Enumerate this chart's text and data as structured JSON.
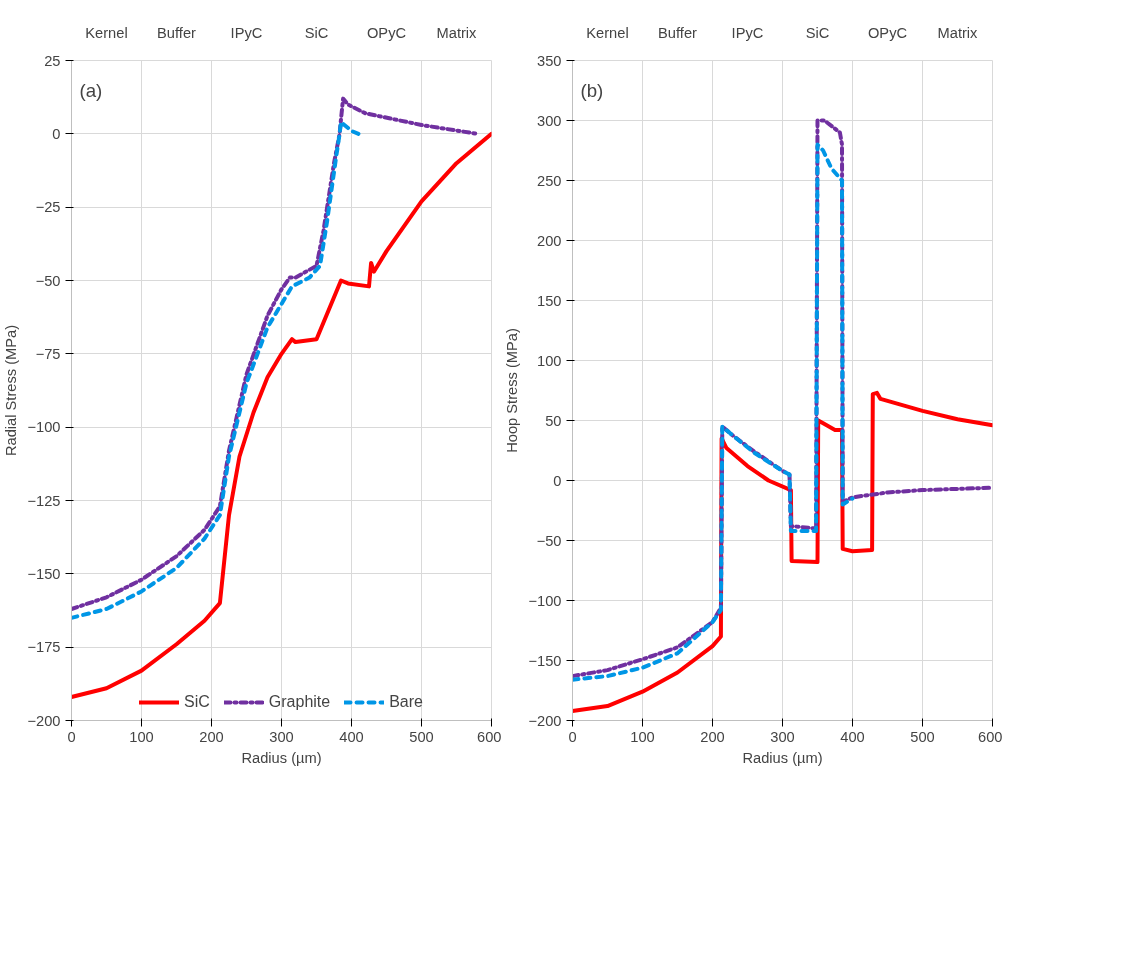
{
  "chart_data": [
    {
      "type": "other",
      "annotations": [
        "Kernel",
        "Buffer",
        "IPyC",
        "SiC",
        "OPyC",
        "Matrix"
      ]
    },
    {
      "type": "line",
      "xlabel": "Radius (µm)",
      "ylabel": "Radial Stress (MPa)",
      "annotations": [
        "(a)"
      ],
      "xlim": [
        0,
        600
      ],
      "xticks": [
        0,
        100,
        200,
        300,
        400,
        500,
        600
      ],
      "ylim": [
        -200,
        25
      ],
      "yticks": [
        -200,
        -175,
        -150,
        -125,
        -100,
        -75,
        -50,
        -25,
        0,
        25
      ],
      "grid": true,
      "legend": "bottom",
      "series": [
        {
          "name": "SiC",
          "color": "#ff0000",
          "line_style": "solid",
          "x": [
            0,
            50,
            100,
            150,
            190,
            212,
            225,
            240,
            260,
            280,
            300,
            315,
            320,
            350,
            385,
            395,
            425,
            428,
            432,
            450,
            500,
            550,
            600
          ],
          "values": [
            -192,
            -189,
            -183,
            -174,
            -166,
            -160,
            -130,
            -110,
            -95,
            -83,
            -75,
            -70,
            -71,
            -70,
            -50,
            -51,
            -52,
            -44,
            -47,
            -40,
            -23,
            -10,
            0
          ]
        },
        {
          "name": "Graphite",
          "color": "#7030a0",
          "line_style": "dashdot",
          "x": [
            0,
            50,
            100,
            150,
            190,
            212,
            225,
            250,
            280,
            300,
            312,
            320,
            350,
            360,
            375,
            383,
            385,
            388,
            395,
            420,
            500,
            580
          ],
          "values": [
            -162,
            -158,
            -152,
            -144,
            -135,
            -127,
            -108,
            -82,
            -62,
            -53,
            -49,
            -49,
            -45,
            -33,
            -10,
            0,
            5,
            12,
            10,
            7,
            3,
            0
          ]
        },
        {
          "name": "Bare",
          "color": "#0096e6",
          "line_style": "dashed",
          "x": [
            0,
            50,
            100,
            150,
            190,
            212,
            225,
            250,
            280,
            300,
            315,
            340,
            355,
            365,
            378,
            383,
            385,
            400,
            410
          ],
          "values": [
            -165,
            -162,
            -156,
            -148,
            -138,
            -130,
            -110,
            -85,
            -66,
            -58,
            -52,
            -49,
            -45,
            -30,
            -8,
            0,
            4,
            1,
            0
          ]
        }
      ]
    },
    {
      "type": "other",
      "annotations": [
        "Kernel",
        "Buffer",
        "IPyC",
        "SiC",
        "OPyC",
        "Matrix"
      ]
    },
    {
      "type": "line",
      "xlabel": "Radius (µm)",
      "ylabel": "Hoop Stress (MPa)",
      "annotations": [
        "(b)"
      ],
      "xlim": [
        0,
        600
      ],
      "xticks": [
        0,
        100,
        200,
        300,
        400,
        500,
        600
      ],
      "ylim": [
        -200,
        350
      ],
      "yticks": [
        -200,
        -150,
        -100,
        -50,
        0,
        50,
        100,
        150,
        200,
        250,
        300,
        350
      ],
      "grid": true,
      "series": [
        {
          "color": "#ff0000",
          "line_style": "solid",
          "x": [
            0,
            50,
            100,
            150,
            200,
            212,
            213,
            220,
            250,
            280,
            312,
            313,
            350,
            351,
            360,
            375,
            385,
            386,
            400,
            428,
            429,
            435,
            440,
            500,
            550,
            600
          ],
          "values": [
            -192,
            -188,
            -176,
            -160,
            -138,
            -130,
            35,
            27,
            12,
            0,
            -8,
            -67,
            -68,
            50,
            47,
            42,
            42,
            -57,
            -59,
            -58,
            72,
            73,
            68,
            58,
            51,
            46
          ]
        },
        {
          "color": "#7030a0",
          "line_style": "dashdot",
          "x": [
            0,
            50,
            100,
            150,
            200,
            212,
            214,
            230,
            260,
            300,
            310,
            312,
            348,
            350,
            360,
            382,
            385,
            386,
            400,
            450,
            500,
            550,
            600
          ],
          "values": [
            -163,
            -158,
            -149,
            -139,
            -118,
            -106,
            45,
            37,
            24,
            8,
            5,
            -38,
            -40,
            300,
            300,
            290,
            280,
            -18,
            -14,
            -10,
            -8,
            -7,
            -6
          ]
        },
        {
          "color": "#0096e6",
          "line_style": "dashed",
          "x": [
            0,
            50,
            100,
            150,
            200,
            212,
            214,
            230,
            260,
            300,
            310,
            312,
            348,
            350,
            358,
            370,
            385,
            386,
            400
          ],
          "values": [
            -166,
            -163,
            -156,
            -144,
            -118,
            -108,
            45,
            37,
            23,
            8,
            5,
            -42,
            -42,
            280,
            275,
            260,
            250,
            -20,
            -15
          ]
        }
      ]
    }
  ]
}
